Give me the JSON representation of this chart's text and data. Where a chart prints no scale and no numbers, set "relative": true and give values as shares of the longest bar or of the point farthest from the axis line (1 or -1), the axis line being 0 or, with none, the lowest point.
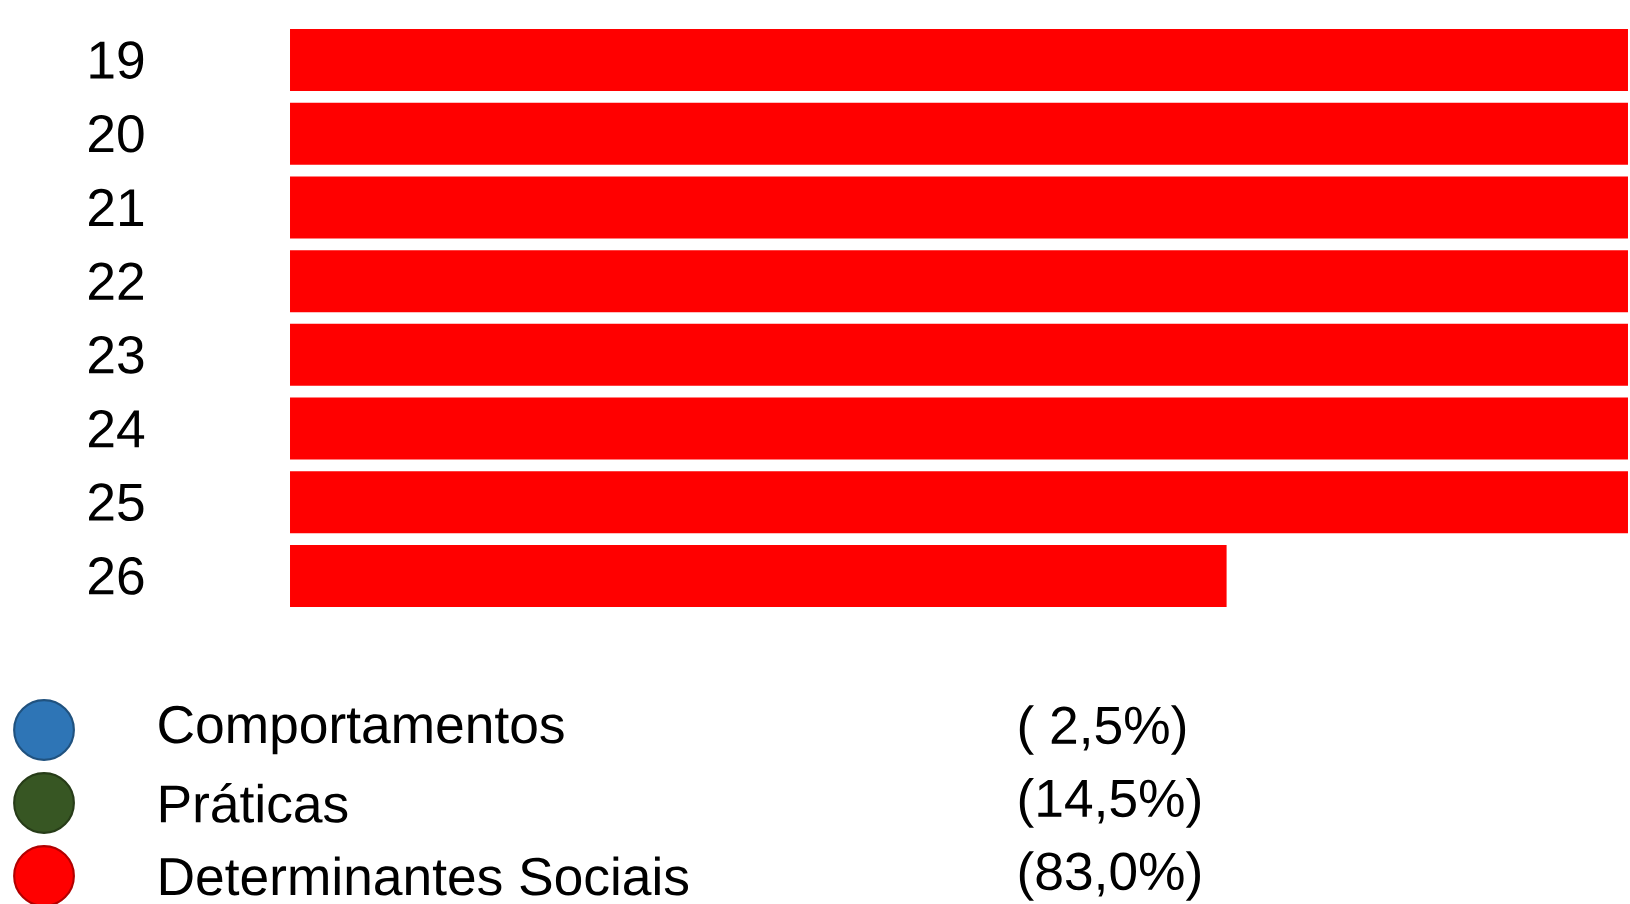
{
  "chart_data": {
    "type": "bar",
    "orientation": "horizontal",
    "relative": true,
    "categories": [
      "19",
      "20",
      "21",
      "22",
      "23",
      "24",
      "25",
      "26"
    ],
    "legend": "bottom left",
    "series": [
      {
        "name": "Comportamentos",
        "color": "#2e75b6",
        "values": [
          null,
          null,
          null,
          null,
          null,
          null,
          null,
          null
        ]
      },
      {
        "name": "Práticas",
        "color": "#375623",
        "values": [
          null,
          null,
          null,
          null,
          null,
          null,
          null,
          null
        ]
      },
      {
        "name": "Determinantes Sociais",
        "color": "#ff0000",
        "values": [
          1,
          1,
          1,
          1,
          1,
          1,
          1,
          0.7
        ]
      }
    ],
    "annotations": [
      "( 2,5%)",
      "(14,5%)",
      "(83,0%)"
    ]
  }
}
